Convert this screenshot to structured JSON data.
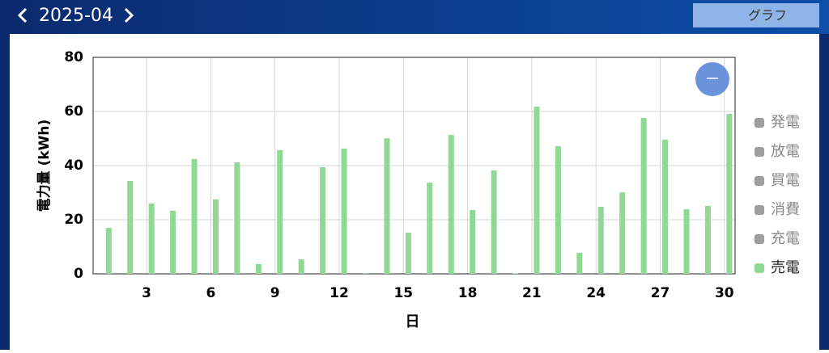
{
  "header": {
    "month": "2025-04",
    "tab": "グラフ"
  },
  "chart_data": {
    "type": "bar",
    "x_label": "日",
    "y_label": "電力量 (kWh)",
    "x": [
      1,
      2,
      3,
      4,
      5,
      6,
      7,
      8,
      9,
      10,
      11,
      12,
      13,
      14,
      15,
      16,
      17,
      18,
      19,
      20,
      21,
      22,
      23,
      24,
      25,
      26,
      27,
      28,
      29,
      30
    ],
    "xlim": [
      0.5,
      30.5
    ],
    "xticks": [
      3,
      6,
      9,
      12,
      15,
      18,
      21,
      24,
      27,
      30
    ],
    "ylim": [
      0,
      80
    ],
    "yticks": [
      0,
      20,
      40,
      60,
      80
    ],
    "grid": true,
    "legend": [
      {
        "name": "発電",
        "color": "#9e9e9e"
      },
      {
        "name": "放電",
        "color": "#9e9e9e"
      },
      {
        "name": "買電",
        "color": "#9e9e9e"
      },
      {
        "name": "消費",
        "color": "#9e9e9e"
      },
      {
        "name": "充電",
        "color": "#9e9e9e"
      }
    ],
    "series": [
      {
        "name": "売電",
        "color": "#90d994",
        "values": [
          17,
          34.3,
          26,
          23.3,
          42.4,
          27.5,
          41.2,
          3.6,
          45.7,
          5.4,
          39.4,
          46.3,
          0.3,
          50.1,
          15.2,
          33.7,
          51.3,
          23.6,
          38.2,
          0.2,
          61.8,
          47.2,
          7.8,
          24.8,
          30.1,
          57.6,
          49.6,
          23.9,
          25.1,
          59.1
        ]
      }
    ]
  }
}
